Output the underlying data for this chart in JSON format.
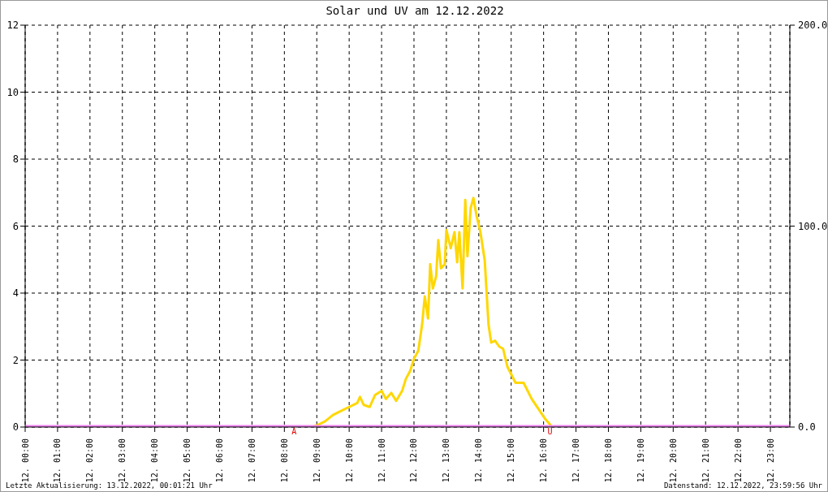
{
  "chart_data": {
    "type": "line",
    "title": "Solar und UV am 12.12.2022",
    "series": [
      {
        "color": "#ffd700",
        "axis": "y2",
        "x": [
          "2022-12-12T00:00",
          "2022-12-12T08:52",
          "2022-12-12T09:03",
          "2022-12-12T09:15",
          "2022-12-12T09:30",
          "2022-12-12T09:45",
          "2022-12-12T10:00",
          "2022-12-12T10:15",
          "2022-12-12T10:20",
          "2022-12-12T10:27",
          "2022-12-12T10:38",
          "2022-12-12T10:48",
          "2022-12-12T11:00",
          "2022-12-12T11:08",
          "2022-12-12T11:18",
          "2022-12-12T11:27",
          "2022-12-12T11:38",
          "2022-12-12T11:45",
          "2022-12-12T11:53",
          "2022-12-12T12:00",
          "2022-12-12T12:08",
          "2022-12-12T12:15",
          "2022-12-12T12:20",
          "2022-12-12T12:26",
          "2022-12-12T12:30",
          "2022-12-12T12:35",
          "2022-12-12T12:41",
          "2022-12-12T12:45",
          "2022-12-12T12:50",
          "2022-12-12T12:57",
          "2022-12-12T13:00",
          "2022-12-12T13:08",
          "2022-12-12T13:15",
          "2022-12-12T13:20",
          "2022-12-12T13:24",
          "2022-12-12T13:30",
          "2022-12-12T13:35",
          "2022-12-12T13:39",
          "2022-12-12T13:45",
          "2022-12-12T13:50",
          "2022-12-12T13:56",
          "2022-12-12T14:03",
          "2022-12-12T14:11",
          "2022-12-12T14:18",
          "2022-12-12T14:23",
          "2022-12-12T14:30",
          "2022-12-12T14:38",
          "2022-12-12T14:45",
          "2022-12-12T14:53",
          "2022-12-12T15:08",
          "2022-12-12T15:23",
          "2022-12-12T15:38",
          "2022-12-12T15:53",
          "2022-12-12T16:03",
          "2022-12-12T16:12",
          "2022-12-12T16:15",
          "2022-12-12T23:36"
        ],
        "values": [
          0,
          0,
          1.2,
          2.8,
          6,
          8,
          10,
          12,
          15,
          11,
          10,
          16,
          18,
          14,
          17,
          13,
          18,
          24,
          28,
          34,
          38,
          51,
          65,
          54,
          81,
          69,
          75,
          93,
          79,
          81,
          98,
          89,
          97,
          82,
          97,
          69,
          113,
          85,
          109,
          114,
          105,
          97,
          83,
          51,
          42,
          43,
          40,
          39,
          30,
          22,
          22,
          14,
          8,
          4,
          1.2,
          0,
          0
        ]
      },
      {
        "color": "#ee82ee",
        "x": [
          "2022-12-12T00:00",
          "2022-12-12T23:36"
        ],
        "values": [
          0,
          0
        ]
      }
    ],
    "xlim": [
      "2022-12-12T00:00",
      "2022-12-12T23:36"
    ],
    "xticks": [
      {
        "value": "2022-12-12T00:00",
        "label": "12. 00:00"
      },
      {
        "value": "2022-12-12T01:00",
        "label": "12. 01:00"
      },
      {
        "value": "2022-12-12T02:00",
        "label": "12. 02:00"
      },
      {
        "value": "2022-12-12T03:00",
        "label": "12. 03:00"
      },
      {
        "value": "2022-12-12T04:00",
        "label": "12. 04:00"
      },
      {
        "value": "2022-12-12T05:00",
        "label": "12. 05:00"
      },
      {
        "value": "2022-12-12T06:00",
        "label": "12. 06:00"
      },
      {
        "value": "2022-12-12T07:00",
        "label": "12. 07:00"
      },
      {
        "value": "2022-12-12T08:00",
        "label": "12. 08:00"
      },
      {
        "value": "2022-12-12T09:00",
        "label": "12. 09:00"
      },
      {
        "value": "2022-12-12T10:00",
        "label": "12. 10:00"
      },
      {
        "value": "2022-12-12T11:00",
        "label": "12. 11:00"
      },
      {
        "value": "2022-12-12T12:00",
        "label": "12. 12:00"
      },
      {
        "value": "2022-12-12T13:00",
        "label": "12. 13:00"
      },
      {
        "value": "2022-12-12T14:00",
        "label": "12. 14:00"
      },
      {
        "value": "2022-12-12T15:00",
        "label": "12. 15:00"
      },
      {
        "value": "2022-12-12T16:00",
        "label": "12. 16:00"
      },
      {
        "value": "2022-12-12T17:00",
        "label": "12. 17:00"
      },
      {
        "value": "2022-12-12T18:00",
        "label": "12. 18:00"
      },
      {
        "value": "2022-12-12T19:00",
        "label": "12. 19:00"
      },
      {
        "value": "2022-12-12T20:00",
        "label": "12. 20:00"
      },
      {
        "value": "2022-12-12T21:00",
        "label": "12. 21:00"
      },
      {
        "value": "2022-12-12T22:00",
        "label": "12. 22:00"
      },
      {
        "value": "2022-12-12T23:00",
        "label": "12. 23:00"
      }
    ],
    "ylim": [
      0,
      12
    ],
    "yticks": [
      0,
      2,
      4,
      6,
      8,
      10,
      12
    ],
    "y2lim": [
      0,
      200
    ],
    "y2ticks": [
      {
        "value": 0,
        "label": "0.0"
      },
      {
        "value": 100,
        "label": "100.0"
      },
      {
        "value": 200,
        "label": "200.0"
      }
    ],
    "grid": true,
    "line_style": "solid",
    "marker": "none",
    "annotations": [
      {
        "text": "A",
        "x": "2022-12-12T08:18",
        "y": 0
      },
      {
        "text": "U",
        "x": "2022-12-12T16:12",
        "y": 0
      },
      "Letzte Aktualisierung: 13.12.2022, 00:01:21 Uhr",
      "Datenstand: 12.12.2022, 23:59:56 Uhr"
    ]
  }
}
